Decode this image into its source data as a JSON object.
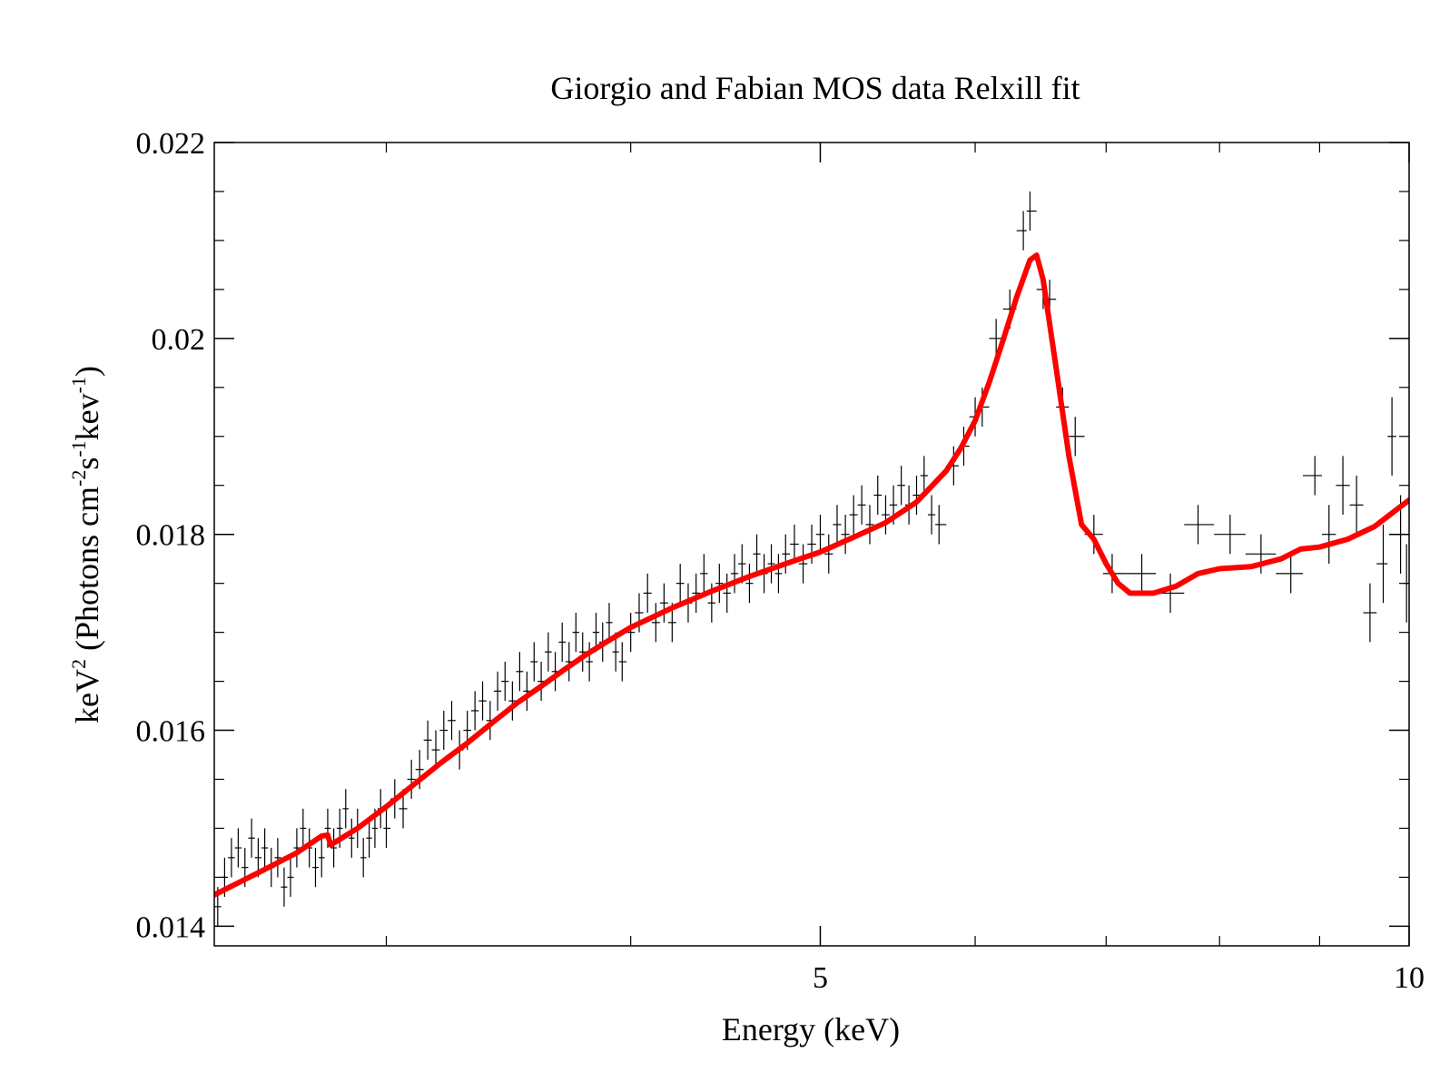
{
  "chart_data": {
    "type": "scatter",
    "title": "Giorgio and Fabian MOS data Relxill fit",
    "xlabel": "Energy (keV)",
    "ylabel_main": "keV",
    "ylabel_sup": "2",
    "ylabel_rest": " (Photons cm",
    "ylabel_sup2": "-2",
    "ylabel_s": "s",
    "ylabel_sup3": "-1",
    "ylabel_kev": "kev",
    "ylabel_sup4": "-1",
    "ylabel_close": ")",
    "xscale": "log",
    "xlim": [
      2.45,
      10
    ],
    "ylim": [
      0.0138,
      0.022
    ],
    "x_ticks": [
      {
        "value": 5,
        "label": "5"
      },
      {
        "value": 10,
        "label": "10"
      }
    ],
    "x_minor_ticks": [
      3,
      4,
      6,
      7,
      8,
      9
    ],
    "y_ticks": [
      {
        "value": 0.014,
        "label": "0.014"
      },
      {
        "value": 0.016,
        "label": "0.016"
      },
      {
        "value": 0.018,
        "label": "0.018"
      },
      {
        "value": 0.02,
        "label": "0.02"
      },
      {
        "value": 0.022,
        "label": "0.022"
      }
    ],
    "y_minor_step": 0.0005,
    "model_color": "#ff0000",
    "data_color": "#000000",
    "model_curve": [
      [
        2.45,
        0.01432
      ],
      [
        2.6,
        0.01458
      ],
      [
        2.7,
        0.01475
      ],
      [
        2.78,
        0.01492
      ],
      [
        2.8,
        0.01493
      ],
      [
        2.81,
        0.01483
      ],
      [
        2.9,
        0.015
      ],
      [
        3.0,
        0.01522
      ],
      [
        3.1,
        0.01545
      ],
      [
        3.2,
        0.01567
      ],
      [
        3.3,
        0.01587
      ],
      [
        3.4,
        0.01608
      ],
      [
        3.5,
        0.01628
      ],
      [
        3.6,
        0.01645
      ],
      [
        3.7,
        0.01662
      ],
      [
        3.8,
        0.01678
      ],
      [
        3.9,
        0.01692
      ],
      [
        4.0,
        0.01705
      ],
      [
        4.2,
        0.01725
      ],
      [
        4.4,
        0.01742
      ],
      [
        4.6,
        0.01757
      ],
      [
        4.8,
        0.0177
      ],
      [
        5.0,
        0.01782
      ],
      [
        5.2,
        0.01797
      ],
      [
        5.4,
        0.01812
      ],
      [
        5.6,
        0.01833
      ],
      [
        5.8,
        0.01865
      ],
      [
        5.9,
        0.01888
      ],
      [
        6.0,
        0.01916
      ],
      [
        6.1,
        0.01955
      ],
      [
        6.2,
        0.01998
      ],
      [
        6.3,
        0.02042
      ],
      [
        6.4,
        0.0208
      ],
      [
        6.45,
        0.02085
      ],
      [
        6.5,
        0.0206
      ],
      [
        6.6,
        0.0197
      ],
      [
        6.7,
        0.0188
      ],
      [
        6.8,
        0.0181
      ],
      [
        6.9,
        0.01795
      ],
      [
        7.0,
        0.0177
      ],
      [
        7.1,
        0.0175
      ],
      [
        7.2,
        0.0174
      ],
      [
        7.4,
        0.0174
      ],
      [
        7.6,
        0.01747
      ],
      [
        7.8,
        0.0176
      ],
      [
        8.0,
        0.01765
      ],
      [
        8.3,
        0.01767
      ],
      [
        8.6,
        0.01775
      ],
      [
        8.8,
        0.01785
      ],
      [
        9.0,
        0.01787
      ],
      [
        9.3,
        0.01795
      ],
      [
        9.6,
        0.01808
      ],
      [
        10.0,
        0.01835
      ]
    ],
    "data_points": [
      [
        2.46,
        0.0142,
        0.0002
      ],
      [
        2.48,
        0.0145,
        0.0002
      ],
      [
        2.5,
        0.0147,
        0.0002
      ],
      [
        2.52,
        0.0148,
        0.0002
      ],
      [
        2.54,
        0.0146,
        0.0002
      ],
      [
        2.56,
        0.0149,
        0.0002
      ],
      [
        2.58,
        0.0147,
        0.0002
      ],
      [
        2.6,
        0.0148,
        0.0002
      ],
      [
        2.62,
        0.0146,
        0.0002
      ],
      [
        2.64,
        0.0147,
        0.0002
      ],
      [
        2.66,
        0.0144,
        0.0002
      ],
      [
        2.68,
        0.0145,
        0.0002
      ],
      [
        2.7,
        0.0148,
        0.0002
      ],
      [
        2.72,
        0.015,
        0.0002
      ],
      [
        2.74,
        0.0148,
        0.0002
      ],
      [
        2.76,
        0.0146,
        0.0002
      ],
      [
        2.78,
        0.0147,
        0.0002
      ],
      [
        2.8,
        0.015,
        0.0002
      ],
      [
        2.82,
        0.0148,
        0.0002
      ],
      [
        2.84,
        0.015,
        0.0002
      ],
      [
        2.86,
        0.0152,
        0.0002
      ],
      [
        2.88,
        0.0149,
        0.0002
      ],
      [
        2.9,
        0.015,
        0.0002
      ],
      [
        2.92,
        0.0147,
        0.0002
      ],
      [
        2.94,
        0.0149,
        0.0002
      ],
      [
        2.96,
        0.015,
        0.0002
      ],
      [
        2.98,
        0.0152,
        0.0002
      ],
      [
        3.0,
        0.015,
        0.0002
      ],
      [
        3.03,
        0.0153,
        0.0002
      ],
      [
        3.06,
        0.0152,
        0.0002
      ],
      [
        3.09,
        0.0155,
        0.0002
      ],
      [
        3.12,
        0.0156,
        0.0002
      ],
      [
        3.15,
        0.0159,
        0.0002
      ],
      [
        3.18,
        0.0158,
        0.0002
      ],
      [
        3.21,
        0.016,
        0.0002
      ],
      [
        3.24,
        0.0161,
        0.0002
      ],
      [
        3.27,
        0.0158,
        0.0002
      ],
      [
        3.3,
        0.016,
        0.0002
      ],
      [
        3.33,
        0.0162,
        0.0002
      ],
      [
        3.36,
        0.0163,
        0.0002
      ],
      [
        3.39,
        0.0161,
        0.0002
      ],
      [
        3.42,
        0.0164,
        0.0002
      ],
      [
        3.45,
        0.0165,
        0.0002
      ],
      [
        3.48,
        0.0163,
        0.0002
      ],
      [
        3.51,
        0.0166,
        0.0002
      ],
      [
        3.54,
        0.0164,
        0.0002
      ],
      [
        3.57,
        0.0167,
        0.0002
      ],
      [
        3.6,
        0.0165,
        0.0002
      ],
      [
        3.63,
        0.0168,
        0.0002
      ],
      [
        3.66,
        0.0166,
        0.0002
      ],
      [
        3.69,
        0.0169,
        0.0002
      ],
      [
        3.72,
        0.0167,
        0.0002
      ],
      [
        3.75,
        0.017,
        0.0002
      ],
      [
        3.78,
        0.0168,
        0.0002
      ],
      [
        3.81,
        0.0167,
        0.0002
      ],
      [
        3.84,
        0.017,
        0.0002
      ],
      [
        3.87,
        0.0169,
        0.0002
      ],
      [
        3.9,
        0.0171,
        0.0002
      ],
      [
        3.93,
        0.0168,
        0.0002
      ],
      [
        3.96,
        0.0167,
        0.0002
      ],
      [
        4.0,
        0.017,
        0.0002
      ],
      [
        4.04,
        0.0172,
        0.0002
      ],
      [
        4.08,
        0.0174,
        0.0002
      ],
      [
        4.12,
        0.0171,
        0.0002
      ],
      [
        4.16,
        0.0173,
        0.0002
      ],
      [
        4.2,
        0.0171,
        0.0002
      ],
      [
        4.24,
        0.0175,
        0.0002
      ],
      [
        4.28,
        0.0173,
        0.0002
      ],
      [
        4.32,
        0.0174,
        0.0002
      ],
      [
        4.36,
        0.0176,
        0.0002
      ],
      [
        4.4,
        0.0173,
        0.0002
      ],
      [
        4.44,
        0.0175,
        0.0002
      ],
      [
        4.48,
        0.0174,
        0.0002
      ],
      [
        4.52,
        0.0176,
        0.0002
      ],
      [
        4.56,
        0.0177,
        0.0002
      ],
      [
        4.6,
        0.0175,
        0.0002
      ],
      [
        4.64,
        0.0178,
        0.0002
      ],
      [
        4.68,
        0.0176,
        0.0002
      ],
      [
        4.72,
        0.0177,
        0.0002
      ],
      [
        4.76,
        0.0176,
        0.0002
      ],
      [
        4.8,
        0.0178,
        0.0002
      ],
      [
        4.85,
        0.0179,
        0.0002
      ],
      [
        4.9,
        0.0177,
        0.0002
      ],
      [
        4.95,
        0.0179,
        0.0002
      ],
      [
        5.0,
        0.018,
        0.0002
      ],
      [
        5.05,
        0.0178,
        0.0002
      ],
      [
        5.1,
        0.0181,
        0.0002
      ],
      [
        5.15,
        0.018,
        0.0002
      ],
      [
        5.2,
        0.0182,
        0.0002
      ],
      [
        5.25,
        0.0183,
        0.0002
      ],
      [
        5.3,
        0.0181,
        0.0002
      ],
      [
        5.35,
        0.0184,
        0.0002
      ],
      [
        5.4,
        0.0182,
        0.0002
      ],
      [
        5.45,
        0.0183,
        0.0002
      ],
      [
        5.5,
        0.0185,
        0.0002
      ],
      [
        5.55,
        0.0183,
        0.0002
      ],
      [
        5.6,
        0.0184,
        0.0002
      ],
      [
        5.65,
        0.0186,
        0.0002
      ],
      [
        5.7,
        0.0182,
        0.0002
      ],
      [
        5.75,
        0.0181,
        0.0002
      ],
      [
        5.85,
        0.0187,
        0.0002
      ],
      [
        5.92,
        0.0189,
        0.0002
      ],
      [
        6.0,
        0.0192,
        0.0002
      ],
      [
        6.05,
        0.0193,
        0.0002
      ],
      [
        6.15,
        0.02,
        0.0002
      ],
      [
        6.25,
        0.0203,
        0.0002
      ],
      [
        6.35,
        0.0211,
        0.0002
      ],
      [
        6.4,
        0.0213,
        0.0002
      ],
      [
        6.5,
        0.0205,
        0.0002
      ],
      [
        6.55,
        0.0204,
        0.0002
      ],
      [
        6.65,
        0.0193,
        0.0002
      ],
      [
        6.75,
        0.019,
        0.0002
      ],
      [
        6.9,
        0.018,
        0.0002
      ],
      [
        7.05,
        0.0176,
        0.0002
      ],
      [
        7.3,
        0.0176,
        0.0002
      ],
      [
        7.55,
        0.0174,
        0.0002
      ],
      [
        7.8,
        0.0181,
        0.0002
      ],
      [
        8.1,
        0.018,
        0.0002
      ],
      [
        8.4,
        0.0178,
        0.0002
      ],
      [
        8.7,
        0.0176,
        0.0002
      ],
      [
        8.95,
        0.0186,
        0.0002
      ],
      [
        9.1,
        0.018,
        0.0003
      ],
      [
        9.25,
        0.0185,
        0.0003
      ],
      [
        9.4,
        0.0183,
        0.0003
      ],
      [
        9.55,
        0.0172,
        0.0003
      ],
      [
        9.7,
        0.0177,
        0.0004
      ],
      [
        9.8,
        0.019,
        0.0004
      ],
      [
        9.9,
        0.018,
        0.0004
      ],
      [
        9.97,
        0.0175,
        0.0004
      ]
    ]
  }
}
